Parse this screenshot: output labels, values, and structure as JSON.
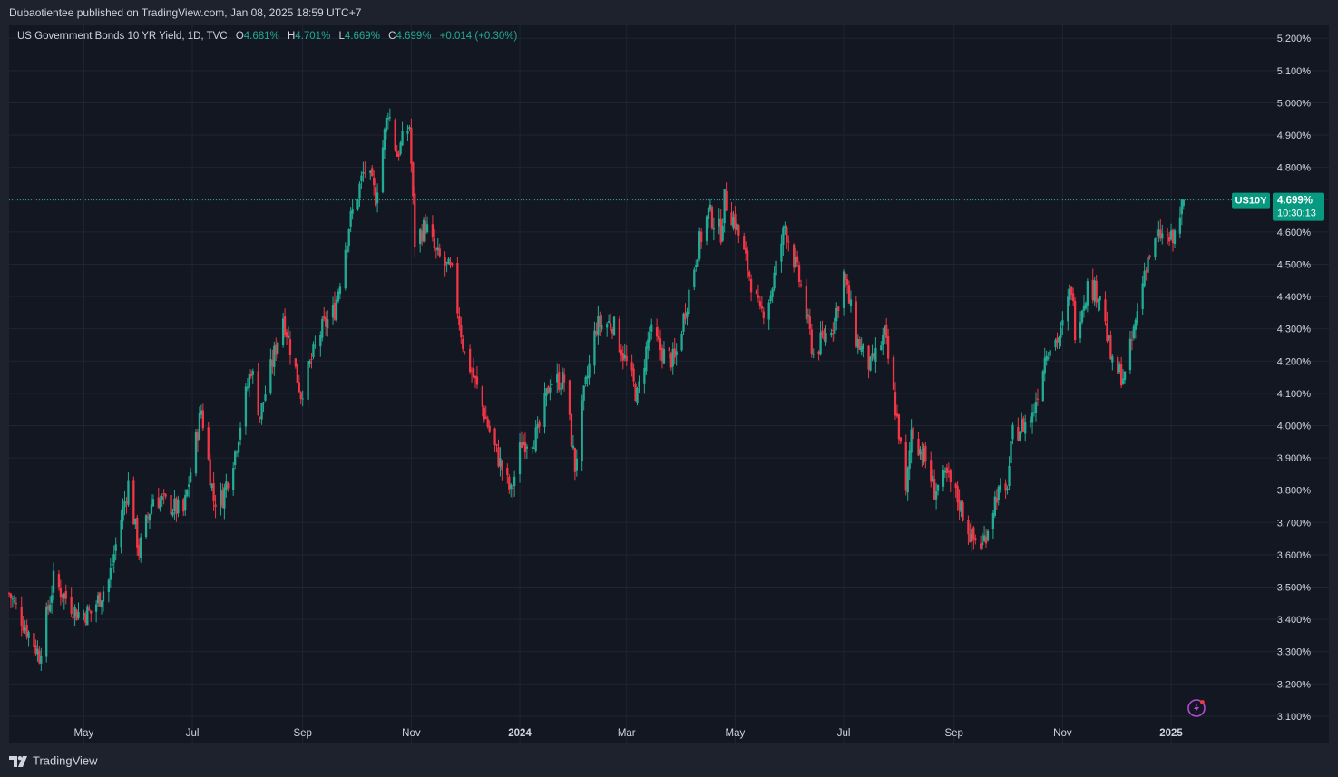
{
  "header": {
    "published_by": "Dubaotientee published on TradingView.com, Jan 08, 2025 18:59 UTC+7"
  },
  "legend": {
    "symbol_desc": "US Government Bonds 10 YR Yield, 1D, TVC",
    "o_label": "O",
    "o_value": "4.681%",
    "h_label": "H",
    "h_value": "4.701%",
    "l_label": "L",
    "l_value": "4.669%",
    "c_label": "C",
    "c_value": "4.699%",
    "change": "+0.014 (+0.30%)"
  },
  "price_tag": {
    "symbol": "US10Y",
    "price": "4.699%",
    "countdown": "10:30:13"
  },
  "footer": {
    "brand": "TradingView"
  },
  "colors": {
    "up": "#22ab94",
    "down": "#f23645",
    "grid": "#1f2433",
    "background": "#131722",
    "axis_text": "#d1d4dc",
    "last_price_line": "#22ab94"
  },
  "icons": {
    "bottom_right_chart": "lightning-bolt-icon"
  },
  "chart_data": {
    "type": "candlestick",
    "title": "",
    "xlabel": "",
    "ylabel": "",
    "ylim": [
      3.08,
      5.24
    ],
    "y_ticks": [
      "5.200%",
      "5.100%",
      "5.000%",
      "4.900%",
      "4.800%",
      "4.700%",
      "4.600%",
      "4.500%",
      "4.400%",
      "4.300%",
      "4.200%",
      "4.100%",
      "4.000%",
      "3.900%",
      "3.800%",
      "3.700%",
      "3.600%",
      "3.500%",
      "3.400%",
      "3.300%",
      "3.200%",
      "3.100%"
    ],
    "x_ticks": [
      {
        "date": "2023-05-01",
        "label": "May",
        "bold": false
      },
      {
        "date": "2023-07-01",
        "label": "Jul",
        "bold": false
      },
      {
        "date": "2023-09-01",
        "label": "Sep",
        "bold": false
      },
      {
        "date": "2023-11-01",
        "label": "Nov",
        "bold": false
      },
      {
        "date": "2024-01-01",
        "label": "2024",
        "bold": true
      },
      {
        "date": "2024-03-01",
        "label": "Mar",
        "bold": false
      },
      {
        "date": "2024-05-01",
        "label": "May",
        "bold": false
      },
      {
        "date": "2024-07-01",
        "label": "Jul",
        "bold": false
      },
      {
        "date": "2024-09-01",
        "label": "Sep",
        "bold": false
      },
      {
        "date": "2024-11-01",
        "label": "Nov",
        "bold": false
      },
      {
        "date": "2025-01-01",
        "label": "2025",
        "bold": true
      }
    ],
    "x_range": [
      "2023-03-20",
      "2025-02-24"
    ],
    "last_price": 4.699,
    "close_path": [
      [
        "2023-03-20",
        3.48
      ],
      [
        "2023-04-06",
        3.29
      ],
      [
        "2023-04-14",
        3.52
      ],
      [
        "2023-04-27",
        3.42
      ],
      [
        "2023-05-05",
        3.42
      ],
      [
        "2023-05-15",
        3.52
      ],
      [
        "2023-05-26",
        3.82
      ],
      [
        "2023-06-01",
        3.61
      ],
      [
        "2023-06-09",
        3.78
      ],
      [
        "2023-06-26",
        3.73
      ],
      [
        "2023-07-06",
        4.05
      ],
      [
        "2023-07-13",
        3.77
      ],
      [
        "2023-07-18",
        3.78
      ],
      [
        "2023-07-25",
        3.92
      ],
      [
        "2023-08-03",
        4.18
      ],
      [
        "2023-08-08",
        4.03
      ],
      [
        "2023-08-21",
        4.34
      ],
      [
        "2023-08-31",
        4.1
      ],
      [
        "2023-09-11",
        4.29
      ],
      [
        "2023-09-19",
        4.36
      ],
      [
        "2023-09-27",
        4.62
      ],
      [
        "2023-10-06",
        4.8
      ],
      [
        "2023-10-12",
        4.71
      ],
      [
        "2023-10-19",
        4.98
      ],
      [
        "2023-10-24",
        4.84
      ],
      [
        "2023-10-31",
        4.93
      ],
      [
        "2023-11-03",
        4.57
      ],
      [
        "2023-11-09",
        4.62
      ],
      [
        "2023-11-15",
        4.53
      ],
      [
        "2023-11-24",
        4.47
      ],
      [
        "2023-12-01",
        4.22
      ],
      [
        "2023-12-05",
        4.17
      ],
      [
        "2023-12-13",
        4.02
      ],
      [
        "2023-12-18",
        3.93
      ],
      [
        "2023-12-27",
        3.79
      ],
      [
        "2024-01-02",
        3.95
      ],
      [
        "2024-01-11",
        3.97
      ],
      [
        "2024-01-18",
        4.14
      ],
      [
        "2024-01-26",
        4.14
      ],
      [
        "2024-02-01",
        3.87
      ],
      [
        "2024-02-06",
        4.09
      ],
      [
        "2024-02-13",
        4.31
      ],
      [
        "2024-02-22",
        4.32
      ],
      [
        "2024-03-01",
        4.19
      ],
      [
        "2024-03-07",
        4.09
      ],
      [
        "2024-03-14",
        4.29
      ],
      [
        "2024-03-22",
        4.22
      ],
      [
        "2024-03-28",
        4.2
      ],
      [
        "2024-04-03",
        4.36
      ],
      [
        "2024-04-10",
        4.55
      ],
      [
        "2024-04-16",
        4.66
      ],
      [
        "2024-04-23",
        4.6
      ],
      [
        "2024-04-25",
        4.7
      ],
      [
        "2024-05-01",
        4.63
      ],
      [
        "2024-05-08",
        4.49
      ],
      [
        "2024-05-15",
        4.34
      ],
      [
        "2024-05-21",
        4.41
      ],
      [
        "2024-05-29",
        4.62
      ],
      [
        "2024-06-07",
        4.43
      ],
      [
        "2024-06-14",
        4.22
      ],
      [
        "2024-06-26",
        4.33
      ],
      [
        "2024-07-01",
        4.47
      ],
      [
        "2024-07-08",
        4.27
      ],
      [
        "2024-07-16",
        4.18
      ],
      [
        "2024-07-24",
        4.28
      ],
      [
        "2024-08-01",
        3.98
      ],
      [
        "2024-08-05",
        3.78
      ],
      [
        "2024-08-08",
        3.99
      ],
      [
        "2024-08-16",
        3.89
      ],
      [
        "2024-08-21",
        3.8
      ],
      [
        "2024-08-28",
        3.84
      ],
      [
        "2024-09-04",
        3.76
      ],
      [
        "2024-09-11",
        3.65
      ],
      [
        "2024-09-17",
        3.63
      ],
      [
        "2024-09-25",
        3.79
      ],
      [
        "2024-09-30",
        3.78
      ],
      [
        "2024-10-04",
        3.97
      ],
      [
        "2024-10-15",
        4.03
      ],
      [
        "2024-10-23",
        4.24
      ],
      [
        "2024-10-31",
        4.28
      ],
      [
        "2024-11-06",
        4.43
      ],
      [
        "2024-11-08",
        4.3
      ],
      [
        "2024-11-15",
        4.43
      ],
      [
        "2024-11-22",
        4.41
      ],
      [
        "2024-11-29",
        4.18
      ],
      [
        "2024-12-06",
        4.15
      ],
      [
        "2024-12-12",
        4.32
      ],
      [
        "2024-12-18",
        4.51
      ],
      [
        "2024-12-26",
        4.59
      ],
      [
        "2025-01-02",
        4.57
      ],
      [
        "2025-01-08",
        4.699
      ]
    ]
  }
}
